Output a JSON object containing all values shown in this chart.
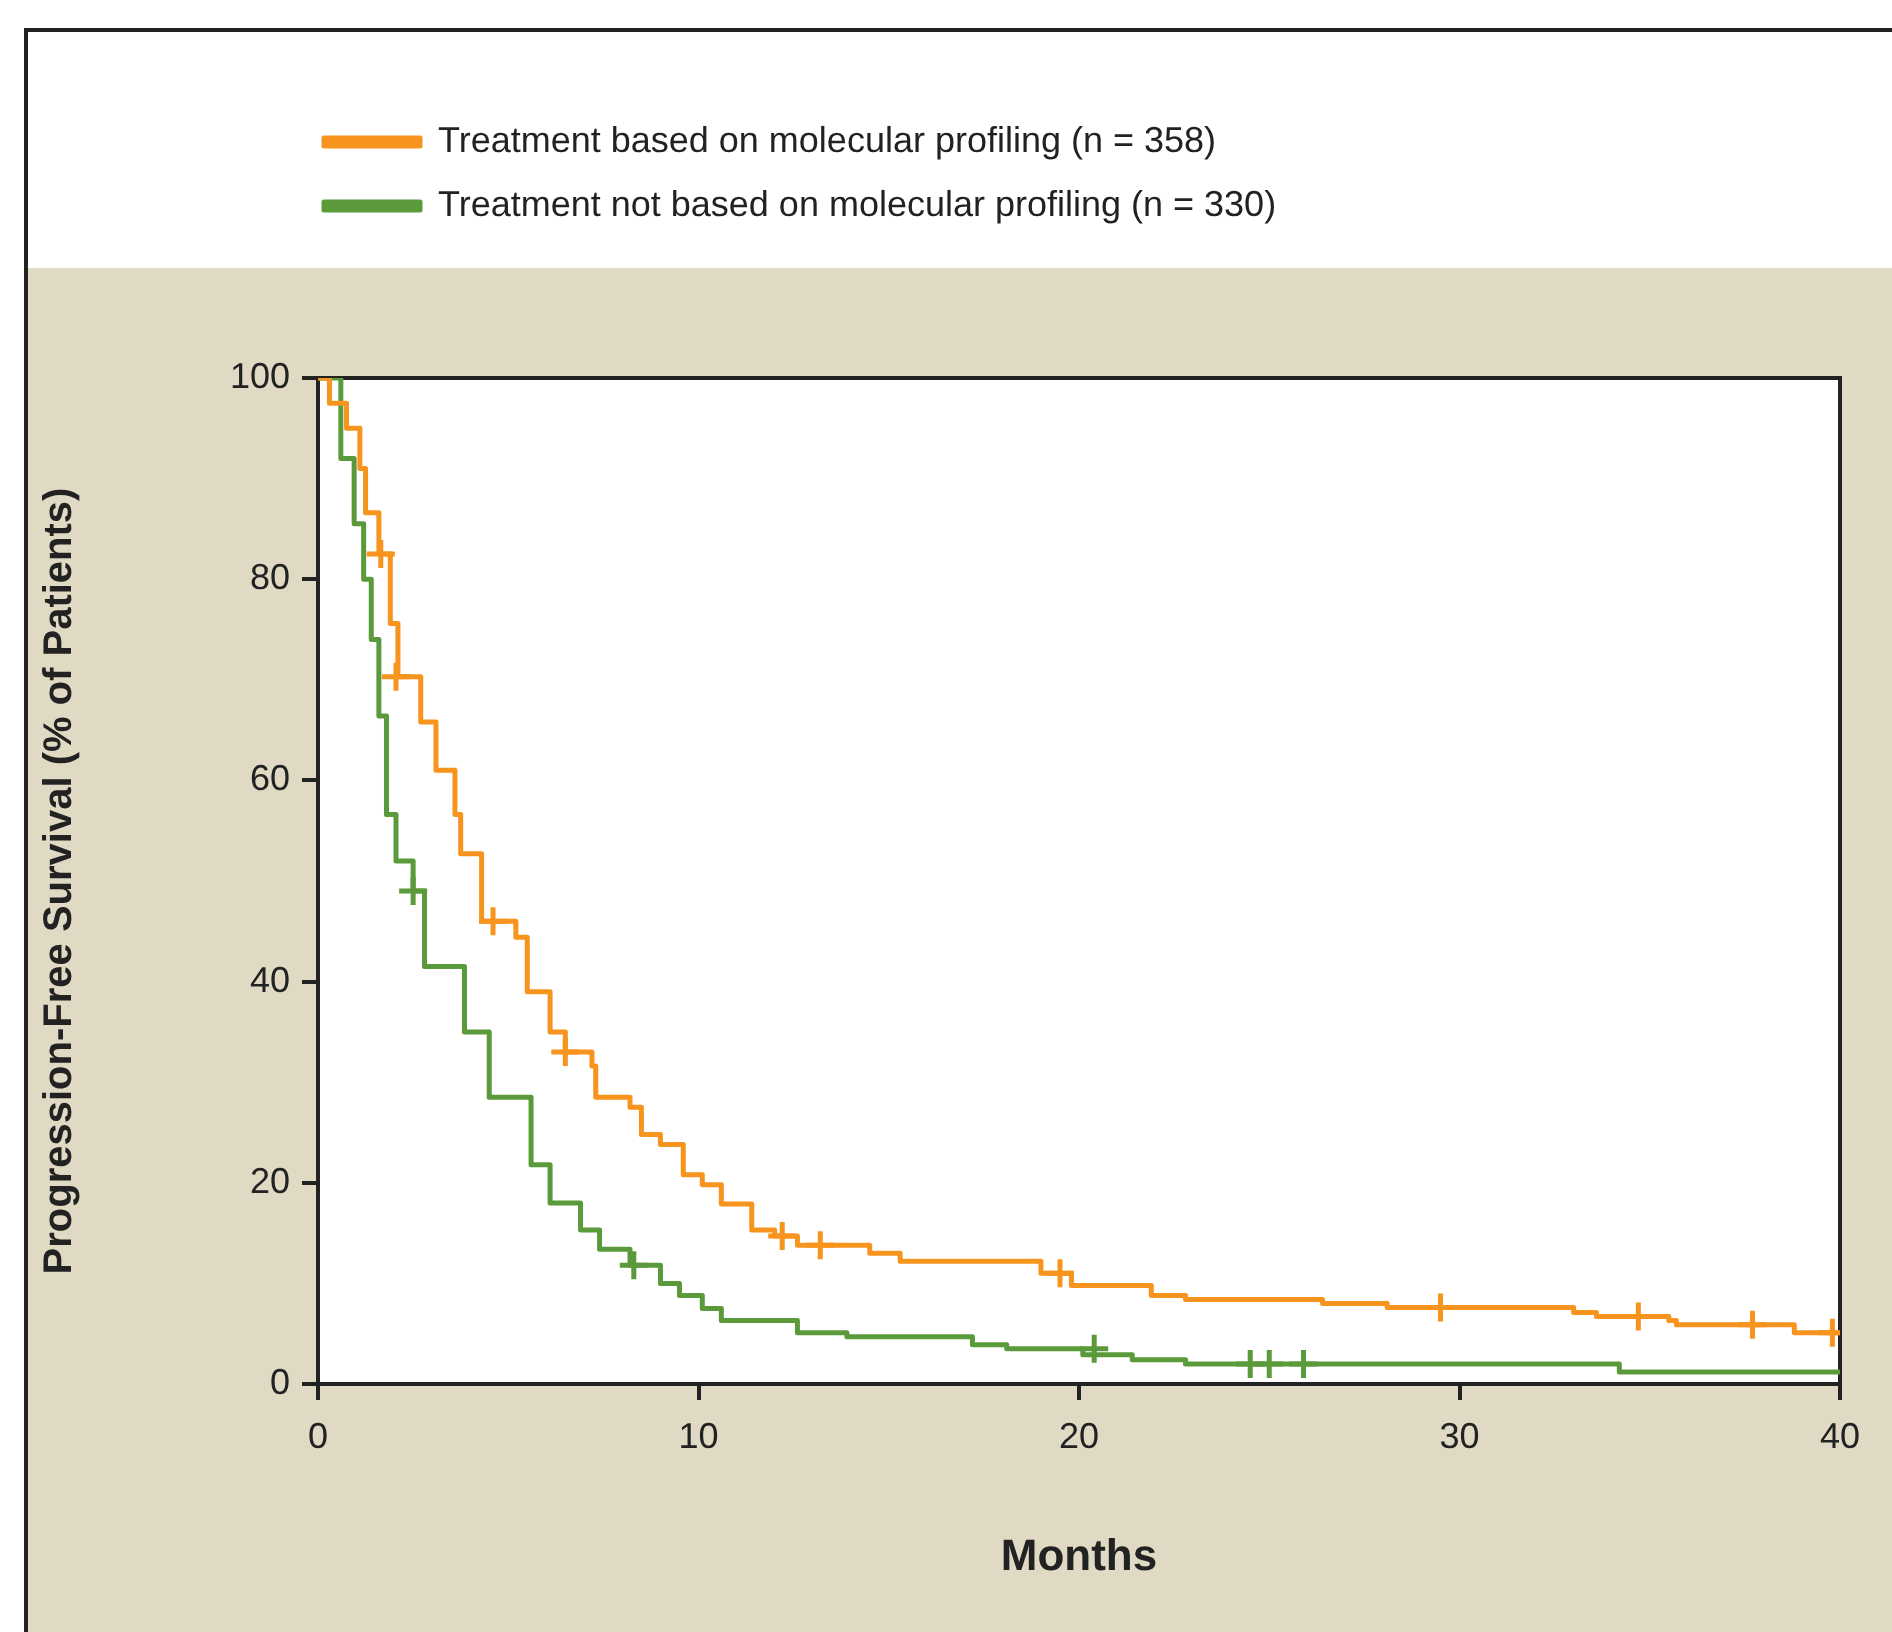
{
  "chart_data": {
    "type": "step",
    "xlabel": "Months",
    "ylabel": "Progression-Free Survival (% of Patients)",
    "xlim": [
      0,
      40
    ],
    "xticks": [
      0,
      10,
      20,
      30,
      40
    ],
    "ylim": [
      0,
      100
    ],
    "yticks": [
      0,
      20,
      40,
      60,
      80,
      100
    ],
    "grid": false,
    "legend": "top",
    "line_style": "solid",
    "marker": "none",
    "series": [
      {
        "name": "Treatment based on molecular profiling (n = 358)",
        "color": "#f7941d",
        "x": [
          0,
          0.3,
          0.75,
          1.1,
          1.25,
          1.6,
          1.9,
          2.1,
          2.7,
          3.1,
          3.6,
          3.75,
          4.3,
          5.2,
          5.5,
          6.1,
          6.5,
          7.2,
          7.3,
          8.2,
          8.5,
          9,
          9.6,
          10.1,
          10.6,
          11.4,
          12,
          12.6,
          14.5,
          15.3,
          19,
          19.8,
          21.9,
          22.8,
          26.4,
          28.1,
          33,
          33.6,
          35.5,
          35.7,
          38.8,
          40
        ],
        "values": [
          100,
          97.5,
          95,
          91,
          86.6,
          82.5,
          75.6,
          70.3,
          65.8,
          61,
          56.6,
          52.7,
          46,
          44.4,
          39,
          35,
          33,
          31.6,
          28.5,
          27.5,
          24.8,
          23.8,
          20.8,
          19.8,
          17.9,
          15.3,
          14.7,
          13.8,
          13,
          12.2,
          11,
          9.8,
          8.8,
          8.4,
          8,
          7.6,
          7.1,
          6.7,
          6.3,
          5.9,
          5.1,
          5.1
        ]
      },
      {
        "name": "Treatment not based on molecular profiling (n = 330)",
        "color": "#5a9a3a",
        "x": [
          0,
          0.6,
          0.95,
          1.2,
          1.4,
          1.6,
          1.8,
          2.05,
          2.5,
          2.8,
          3.85,
          4.5,
          5.6,
          6.1,
          6.9,
          7.4,
          8.2,
          9,
          9.5,
          10.1,
          10.6,
          12.6,
          13.9,
          17.2,
          18.1,
          20.1,
          21.4,
          22.8,
          34.2,
          40
        ],
        "values": [
          100,
          92,
          85.5,
          80,
          74,
          66.4,
          56.6,
          52,
          49,
          41.5,
          35,
          28.5,
          21.8,
          18,
          15.3,
          13.4,
          11.8,
          10,
          8.8,
          7.5,
          6.3,
          5.1,
          4.7,
          3.9,
          3.5,
          2.9,
          2.4,
          2,
          1.2,
          1.2
        ]
      },
      {
        "type": "scatter",
        "marker": "cross",
        "color": "#f7941d",
        "x": [
          1.65,
          2.05,
          4.6,
          6.5,
          12.2,
          13.2,
          19.5,
          29.5,
          34.7,
          37.7,
          39.8
        ],
        "values": [
          82.5,
          70.3,
          46,
          33,
          14.7,
          13.8,
          11,
          7.6,
          6.7,
          5.9,
          5.1
        ]
      },
      {
        "type": "scatter",
        "marker": "cross",
        "color": "#5a9a3a",
        "x": [
          2.5,
          8.3,
          20.4,
          24.5,
          25,
          25.9
        ],
        "values": [
          49,
          11.8,
          3.5,
          2,
          2,
          2
        ]
      }
    ]
  }
}
